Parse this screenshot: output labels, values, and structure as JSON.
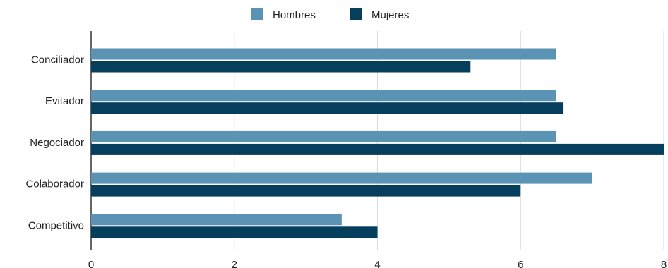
{
  "chart_data": {
    "type": "bar",
    "orientation": "horizontal",
    "categories": [
      "Conciliador",
      "Evitador",
      "Negociador",
      "Colaborador",
      "Competitivo"
    ],
    "series": [
      {
        "name": "Hombres",
        "color": "#5b93b4",
        "values": [
          6.5,
          6.5,
          6.5,
          7.0,
          3.5
        ]
      },
      {
        "name": "Mujeres",
        "color": "#063e5e",
        "values": [
          5.3,
          6.6,
          8.0,
          6.0,
          4.0
        ]
      }
    ],
    "xticks": [
      "0",
      "2",
      "4",
      "6",
      "8"
    ],
    "xlim": [
      0,
      8
    ],
    "grid": true,
    "legend_position": "top-center"
  }
}
